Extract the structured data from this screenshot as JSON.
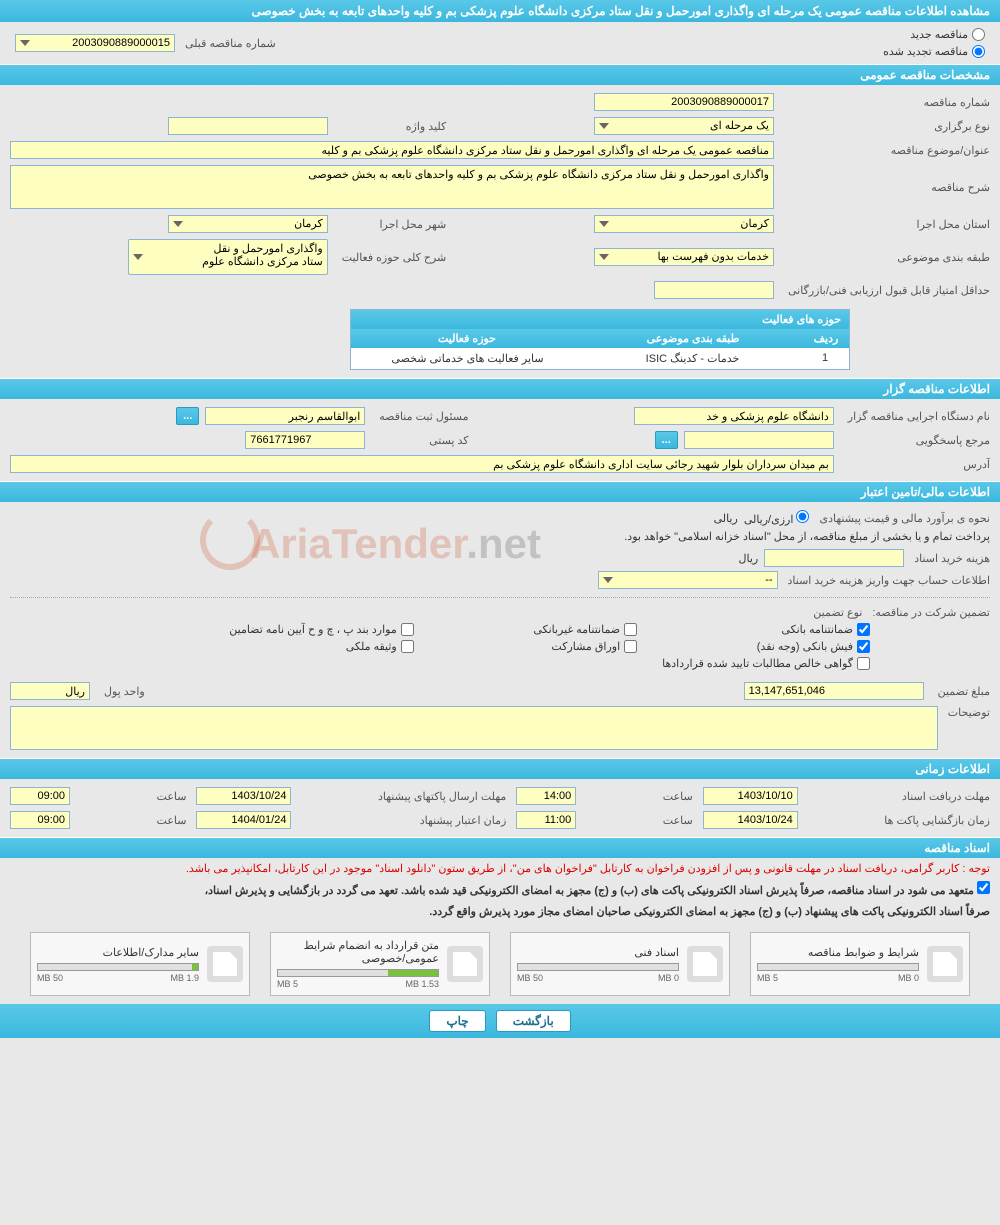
{
  "header": {
    "title": "مشاهده اطلاعات مناقصه عمومی یک مرحله ای واگذاری امورحمل و نقل ستاد مرکزی دانشگاه علوم پزشکی بم و کلیه واحدهای تابعه به بخش خصوصی"
  },
  "radios": {
    "new_label": "مناقصه جدید",
    "renewed_label": "مناقصه تجدید شده",
    "prev_label": "شماره مناقصه قبلی",
    "prev_value": "2003090889000015"
  },
  "sections": {
    "general": "مشخصات مناقصه عمومی",
    "issuer": "اطلاعات مناقصه گزار",
    "financial": "اطلاعات مالی/تامین اعتبار",
    "timing": "اطلاعات زمانی",
    "documents": "اسناد مناقصه"
  },
  "general": {
    "tender_no_label": "شماره مناقصه",
    "tender_no": "2003090889000017",
    "type_label": "نوع برگزاری",
    "type_value": "یک مرحله ای",
    "keyword_label": "کلید واژه",
    "keyword_value": "",
    "subject_label": "عنوان/موضوع مناقصه",
    "subject_value": "مناقصه عمومی یک مرحله ای واگذاری امورحمل و نقل ستاد مرکزی دانشگاه علوم پزشکی بم و کلیه",
    "desc_label": "شرح مناقصه",
    "desc_value": "واگذاری امورحمل و نقل ستاد مرکزی دانشگاه علوم پزشکی بم و کلیه واحدهای تابعه به بخش خصوصی",
    "province_label": "استان محل اجرا",
    "province_value": "کرمان",
    "city_label": "شهر محل اجرا",
    "city_value": "کرمان",
    "category_label": "طبقه بندی موضوعی",
    "category_value": "خدمات بدون فهرست بها",
    "scope_label": "شرح کلی حوزه فعالیت",
    "scope_lines": [
      "واگذاری امورحمل و نقل",
      "ستاد مرکزی دانشگاه علوم"
    ],
    "min_score_label": "حداقل امتیاز قابل قبول ارزیابی فنی/بازرگانی",
    "min_score_value": "",
    "activities_header": "حوزه های فعالیت",
    "col_row": "ردیف",
    "col_cat": "طبقه بندی موضوعی",
    "col_scope": "حوزه فعالیت",
    "row1_idx": "1",
    "row1_cat": "خدمات - کدینگ ISIC",
    "row1_scope": "سایر فعالیت های خدماتی شخصی"
  },
  "issuer": {
    "org_label": "نام دستگاه اجرایی مناقصه گزار",
    "org_value": "دانشگاه علوم پزشکی و خد",
    "registrar_label": "مسئول ثبت مناقصه",
    "registrar_value": "ابوالقاسم رنجبر",
    "contact_label": "مرجع پاسخگویی",
    "postal_label": "کد پستی",
    "postal_value": "7661771967",
    "address_label": "آدرس",
    "address_value": "بم میدان سرداران بلوار شهید رجائی سایت اداری دانشگاه علوم پزشکی بم",
    "btn_more": "..."
  },
  "financial": {
    "estimate_label": "نحوه ی برآورد مالی و قیمت پیشنهادی",
    "currency_label": "ارزی/ریالی",
    "currency_value": "ریالی",
    "payment_note": "پرداخت تمام و یا بخشی از مبلغ مناقصه، از محل \"اسناد خزانه اسلامی\" خواهد بود.",
    "doc_cost_label": "هزینه خرید اسناد",
    "doc_cost_value": "",
    "doc_cost_unit": "ریال",
    "deposit_info_label": "اطلاعات حساب جهت واریز هزینه خرید اسناد",
    "deposit_info_value": "--",
    "guarantee_label": "تضمین شرکت در مناقصه:",
    "guarantee_type_label": "نوع تضمین",
    "chk_bank": "ضمانتنامه بانکی",
    "chk_nonbank": "ضمانتنامه غیربانکی",
    "chk_clauses": "موارد بند پ ، چ و ح آیین نامه تضامین",
    "chk_cash": "فیش بانکی (وجه نقد)",
    "chk_securities": "اوراق مشارکت",
    "chk_property": "وثیقه ملکی",
    "chk_cert": "گواهی خالص مطالبات تایید شده قراردادها",
    "amount_label": "مبلغ تضمین",
    "amount_value": "13,147,651,046",
    "unit_label": "واحد پول",
    "unit_value": "ریال",
    "notes_label": "توضیحات",
    "notes_value": ""
  },
  "timing": {
    "receive_label": "مهلت دریافت اسناد",
    "receive_date": "1403/10/10",
    "time_label": "ساعت",
    "receive_time": "14:00",
    "submit_label": "مهلت ارسال پاکتهای پیشنهاد",
    "submit_date": "1403/10/24",
    "submit_time": "09:00",
    "open_label": "زمان بازگشایی پاکت ها",
    "open_date": "1403/10/24",
    "open_time": "11:00",
    "validity_label": "زمان اعتبار پیشنهاد",
    "validity_date": "1404/01/24",
    "validity_time": "09:00"
  },
  "docs": {
    "red_note": "توجه : کاربر گرامی، دریافت اسناد در مهلت قانونی و پس از افزودن فراخوان به کارتابل \"فراخوان های من\"، از طریق ستون \"دانلود اسناد\" موجود در این کارتابل، امکانپذیر می باشد.",
    "bold_note1": "متعهد می شود در اسناد مناقصه، صرفاً پذیرش اسناد الکترونیکی پاکت های (ب) و (ج) مجهز به امضای الکترونیکی قید شده باشد. تعهد می گردد در بازگشایی و پذیرش اسناد،",
    "bold_note2": "صرفاً اسناد الکترونیکی پاکت های پیشنهاد (ب) و (ج) مجهز به امضای الکترونیکی صاحبان امضای مجاز مورد پذیرش واقع گردد.",
    "items": [
      {
        "title": "شرایط و ضوابط مناقصه",
        "used": "0 MB",
        "max": "5 MB",
        "fill_pct": 0
      },
      {
        "title": "اسناد فنی",
        "used": "0 MB",
        "max": "50 MB",
        "fill_pct": 0
      },
      {
        "title": "متن قرارداد به انضمام شرایط عمومی/خصوصی",
        "used": "1.53 MB",
        "max": "5 MB",
        "fill_pct": 31
      },
      {
        "title": "سایر مدارک/اطلاعات",
        "used": "1.9 MB",
        "max": "50 MB",
        "fill_pct": 4
      }
    ]
  },
  "footer": {
    "back": "بازگشت",
    "print": "چاپ"
  },
  "watermark": {
    "text1": "AriaTender",
    "text2": ".net"
  },
  "colors": {
    "section_bg": "#5ac8e8",
    "field_bg": "#fdfec0",
    "border": "#8ab5d4"
  }
}
